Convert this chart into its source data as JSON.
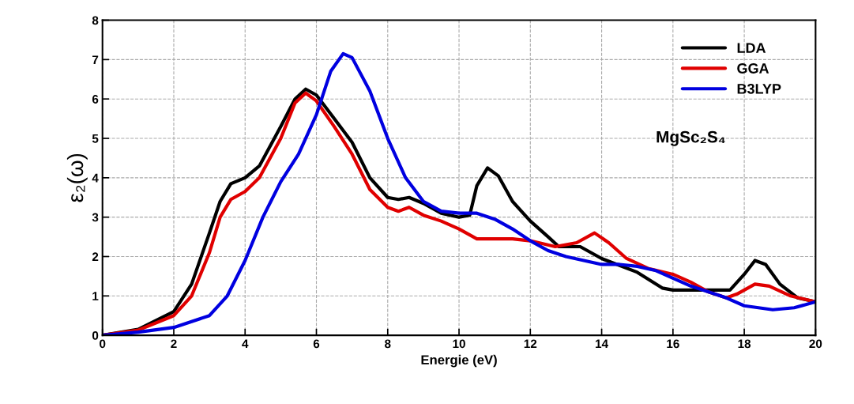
{
  "chart_data": {
    "type": "line",
    "xlabel": "Energie (eV)",
    "ylabel": "ε₂(ω)",
    "xlim": [
      0,
      20
    ],
    "ylim": [
      0,
      8
    ],
    "xticks": [
      0,
      2,
      4,
      6,
      8,
      10,
      12,
      14,
      16,
      18,
      20
    ],
    "yticks": [
      0,
      1,
      2,
      3,
      4,
      5,
      6,
      7,
      8
    ],
    "grid": true,
    "legend": "top right",
    "annotations": [
      "MgSc₂S₄"
    ],
    "series": [
      {
        "name": "LDA",
        "color": "#000000",
        "x": [
          0,
          1,
          2,
          2.5,
          3,
          3.3,
          3.6,
          4,
          4.4,
          5,
          5.4,
          5.7,
          6,
          6.5,
          7,
          7.5,
          8,
          8.3,
          8.6,
          9,
          9.5,
          10,
          10.3,
          10.5,
          10.8,
          11.1,
          11.5,
          12,
          12.5,
          12.8,
          13.4,
          14,
          15,
          15.7,
          16,
          17,
          17.6,
          18,
          18.3,
          18.6,
          19,
          19.5,
          20
        ],
        "values": [
          0,
          0.15,
          0.6,
          1.3,
          2.6,
          3.4,
          3.85,
          4.0,
          4.3,
          5.3,
          6.0,
          6.25,
          6.1,
          5.5,
          4.9,
          4.0,
          3.5,
          3.45,
          3.5,
          3.35,
          3.1,
          3.0,
          3.05,
          3.8,
          4.25,
          4.05,
          3.4,
          2.9,
          2.5,
          2.25,
          2.25,
          1.95,
          1.6,
          1.2,
          1.15,
          1.15,
          1.15,
          1.55,
          1.9,
          1.8,
          1.3,
          0.95,
          0.85
        ]
      },
      {
        "name": "GGA",
        "color": "#e00000",
        "x": [
          0,
          1,
          2,
          2.5,
          3,
          3.3,
          3.6,
          4,
          4.4,
          5,
          5.4,
          5.7,
          6,
          6.5,
          7,
          7.5,
          8,
          8.3,
          8.6,
          9,
          9.5,
          10,
          10.5,
          11,
          11.5,
          12,
          12.7,
          13.3,
          13.8,
          14.2,
          14.7,
          15.3,
          16,
          16.5,
          17,
          17.5,
          17.8,
          18.3,
          18.7,
          19.3,
          20
        ],
        "values": [
          0,
          0.13,
          0.5,
          1.0,
          2.1,
          3.0,
          3.45,
          3.65,
          4.0,
          5.0,
          5.9,
          6.15,
          5.95,
          5.3,
          4.6,
          3.7,
          3.25,
          3.15,
          3.25,
          3.05,
          2.9,
          2.7,
          2.45,
          2.45,
          2.45,
          2.4,
          2.25,
          2.35,
          2.6,
          2.35,
          1.95,
          1.7,
          1.55,
          1.35,
          1.1,
          0.95,
          1.05,
          1.3,
          1.25,
          1.0,
          0.85
        ]
      },
      {
        "name": "B3LYP",
        "color": "#0000e0",
        "x": [
          0,
          1,
          2,
          3,
          3.5,
          4,
          4.5,
          5,
          5.5,
          6,
          6.4,
          6.75,
          7,
          7.5,
          8,
          8.5,
          9,
          9.5,
          10,
          10.5,
          11,
          11.5,
          12,
          12.5,
          13,
          14,
          14.5,
          15,
          15.5,
          16,
          16.5,
          17,
          17.5,
          18,
          18.8,
          19.4,
          20
        ],
        "values": [
          0,
          0.08,
          0.2,
          0.5,
          1.0,
          1.9,
          3.0,
          3.9,
          4.6,
          5.6,
          6.7,
          7.15,
          7.05,
          6.2,
          5.0,
          4.0,
          3.4,
          3.15,
          3.1,
          3.1,
          2.95,
          2.7,
          2.4,
          2.15,
          2.0,
          1.8,
          1.8,
          1.75,
          1.65,
          1.45,
          1.25,
          1.1,
          0.95,
          0.75,
          0.65,
          0.7,
          0.85
        ]
      }
    ]
  }
}
